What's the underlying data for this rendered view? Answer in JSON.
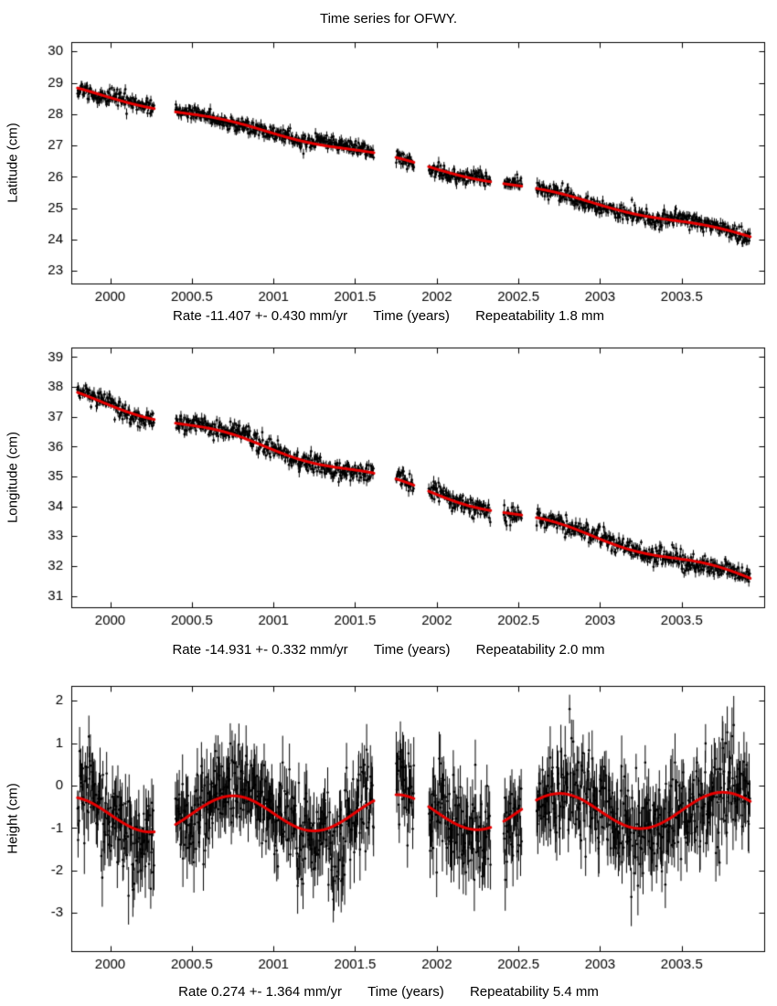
{
  "title": "Time series for OFWY.",
  "panels": [
    {
      "ylabel": "Latitude (cm)",
      "rate_label": "Rate -11.407 +- 0.430 mm/yr",
      "time_label": "Time (years)",
      "repeat_label": "Repeatability 1.8 mm"
    },
    {
      "ylabel": "Longitude (cm)",
      "rate_label": "Rate -14.931 +- 0.332 mm/yr",
      "time_label": "Time (years)",
      "repeat_label": "Repeatability 2.0 mm"
    },
    {
      "ylabel": "Height (cm)",
      "rate_label": "Rate 0.274 +- 1.364 mm/yr",
      "time_label": "Time (years)",
      "repeat_label": "Repeatability 5.4 mm"
    }
  ],
  "chart_data": [
    {
      "type": "scatter",
      "series": "latitude",
      "title": "Time series for OFWY.",
      "ylabel": "Latitude (cm)",
      "xlabel": "Time (years)",
      "rate_mm_per_yr": -11.407,
      "rate_sigma_mm_per_yr": 0.43,
      "repeatability_mm": 1.8,
      "xlim": [
        1999.762,
        2004.005
      ],
      "ylim": [
        22.6,
        30.3
      ],
      "xticks": [
        2000,
        2000.5,
        2001,
        2001.5,
        2002,
        2002.5,
        2003,
        2003.5
      ],
      "xtick_labels": [
        "2000",
        "2000.5",
        "2001",
        "2001.5",
        "2002",
        "2002.5",
        "2003",
        "2003.5"
      ],
      "yticks": [
        23,
        24,
        25,
        26,
        27,
        28,
        29,
        30
      ],
      "trange": [
        1999.8,
        2003.92
      ],
      "gaps": [
        [
          2000.27,
          2000.4
        ],
        [
          2001.615,
          2001.75
        ],
        [
          2001.86,
          2001.95
        ],
        [
          2002.33,
          2002.41
        ],
        [
          2002.52,
          2002.61
        ]
      ],
      "fit": {
        "intercept_2000_cm": 28.55,
        "slope_cm_per_yr": -1.1407,
        "seasonal_amp_cm": 0.07,
        "seasonal_peak_year": 2000.7,
        "color": "#e60000",
        "width": 3
      },
      "scatter": {
        "n": 1250,
        "sigma_cm": 0.12,
        "wander_cm": 0.09,
        "errorbar_cm": [
          0.08,
          0.18
        ],
        "point_radius": 1.4,
        "seed": 7,
        "color": "#000000"
      }
    },
    {
      "type": "scatter",
      "series": "longitude",
      "title": "Time series for OFWY.",
      "ylabel": "Longitude (cm)",
      "xlabel": "Time (years)",
      "rate_mm_per_yr": -14.931,
      "rate_sigma_mm_per_yr": 0.332,
      "repeatability_mm": 2.0,
      "xlim": [
        1999.762,
        2004.005
      ],
      "ylim": [
        30.62,
        39.32
      ],
      "xticks": [
        2000,
        2000.5,
        2001,
        2001.5,
        2002,
        2002.5,
        2003,
        2003.5
      ],
      "xtick_labels": [
        "2000",
        "2000.5",
        "2001",
        "2001.5",
        "2002",
        "2002.5",
        "2003",
        "2003.5"
      ],
      "yticks": [
        31,
        32,
        33,
        34,
        35,
        36,
        37,
        38,
        39
      ],
      "trange": [
        1999.8,
        2003.92
      ],
      "gaps": [
        [
          2000.27,
          2000.4
        ],
        [
          2001.615,
          2001.75
        ],
        [
          2001.86,
          2001.95
        ],
        [
          2002.33,
          2002.41
        ],
        [
          2002.52,
          2002.61
        ]
      ],
      "fit": {
        "intercept_2000_cm": 37.42,
        "slope_cm_per_yr": -1.4931,
        "seasonal_amp_cm": 0.12,
        "seasonal_peak_year": 2000.7,
        "color": "#e60000",
        "width": 3
      },
      "scatter": {
        "n": 1250,
        "sigma_cm": 0.15,
        "wander_cm": 0.1,
        "errorbar_cm": [
          0.08,
          0.2
        ],
        "point_radius": 1.4,
        "seed": 13,
        "color": "#000000"
      }
    },
    {
      "type": "scatter",
      "series": "height",
      "title": "Time series for OFWY.",
      "ylabel": "Height (cm)",
      "xlabel": "Time (years)",
      "rate_mm_per_yr": 0.274,
      "rate_sigma_mm_per_yr": 1.364,
      "repeatability_mm": 5.4,
      "xlim": [
        1999.762,
        2004.005
      ],
      "ylim": [
        -3.9,
        2.35
      ],
      "xticks": [
        2000,
        2000.5,
        2001,
        2001.5,
        2002,
        2002.5,
        2003,
        2003.5
      ],
      "xtick_labels": [
        "2000",
        "2000.5",
        "2001",
        "2001.5",
        "2002",
        "2002.5",
        "2003",
        "2003.5"
      ],
      "yticks": [
        -3,
        -2,
        -1,
        0,
        1,
        2
      ],
      "trange": [
        1999.8,
        2003.92
      ],
      "gaps": [
        [
          2000.27,
          2000.4
        ],
        [
          2001.615,
          2001.75
        ],
        [
          2001.86,
          2001.95
        ],
        [
          2002.33,
          2002.41
        ],
        [
          2002.52,
          2002.61
        ]
      ],
      "fit": {
        "intercept_2000_cm": -0.68,
        "slope_cm_per_yr": 0.0274,
        "seasonal_amp_cm": 0.42,
        "seasonal_peak_year": 2000.75,
        "color": "#e60000",
        "width": 3
      },
      "scatter": {
        "n": 1250,
        "sigma_cm": 0.55,
        "wander_cm": 0.22,
        "errorbar_cm": [
          0.3,
          0.75
        ],
        "point_radius": 1.3,
        "seed": 42,
        "color": "#000000"
      }
    }
  ]
}
